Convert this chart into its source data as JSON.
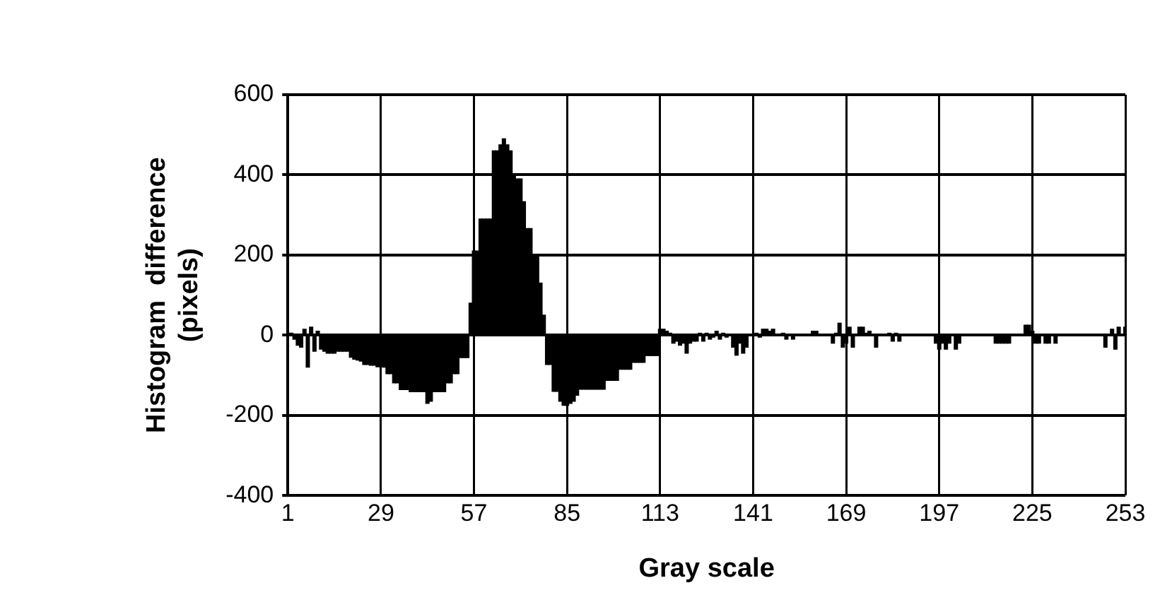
{
  "chart_data": {
    "type": "bar",
    "xlabel": "Gray scale",
    "ylabel": "Histogram  difference\n(pixels)",
    "categories": [
      "1",
      null,
      null,
      null,
      null,
      null,
      null,
      null,
      null,
      null,
      null,
      null,
      null,
      null,
      null,
      null,
      null,
      null,
      null,
      null,
      null,
      null,
      null,
      null,
      null,
      null,
      null,
      null,
      "29",
      null,
      null,
      null,
      null,
      null,
      null,
      null,
      null,
      null,
      null,
      null,
      null,
      null,
      null,
      null,
      null,
      null,
      null,
      null,
      null,
      null,
      null,
      null,
      null,
      null,
      null,
      null,
      "57",
      null,
      null,
      null,
      null,
      null,
      null,
      null,
      null,
      null,
      null,
      null,
      null,
      null,
      null,
      null,
      null,
      null,
      null,
      null,
      null,
      null,
      null,
      null,
      null,
      null,
      null,
      null,
      "85",
      null,
      null,
      null,
      null,
      null,
      null,
      null,
      null,
      null,
      null,
      null,
      null,
      null,
      null,
      null,
      null,
      null,
      null,
      null,
      null,
      null,
      null,
      null,
      null,
      null,
      null,
      null,
      "113",
      null,
      null,
      null,
      null,
      null,
      null,
      null,
      null,
      null,
      null,
      null,
      null,
      null,
      null,
      null,
      null,
      null,
      null,
      null,
      null,
      null,
      null,
      null,
      null,
      null,
      null,
      null,
      "141",
      null,
      null,
      null,
      null,
      null,
      null,
      null,
      null,
      null,
      null,
      null,
      null,
      null,
      null,
      null,
      null,
      null,
      null,
      null,
      null,
      null,
      null,
      null,
      null,
      null,
      null,
      null,
      "169",
      null,
      null,
      null,
      null,
      null,
      null,
      null,
      null,
      null,
      null,
      null,
      null,
      null,
      null,
      null,
      null,
      null,
      null,
      null,
      null,
      null,
      null,
      null,
      null,
      null,
      null,
      null,
      "197",
      null,
      null,
      null,
      null,
      null,
      null,
      null,
      null,
      null,
      null,
      null,
      null,
      null,
      null,
      null,
      null,
      null,
      null,
      null,
      null,
      null,
      null,
      null,
      null,
      null,
      null,
      null,
      "225",
      null,
      null,
      null,
      null,
      null,
      null,
      null,
      null,
      null,
      null,
      null,
      null,
      null,
      null,
      null,
      null,
      null,
      null,
      null,
      null,
      null,
      null,
      null,
      null,
      null,
      null,
      null,
      "253"
    ],
    "values": [
      null,
      5,
      -10,
      -25,
      -30,
      15,
      -80,
      20,
      -40,
      10,
      -35,
      -40,
      -45,
      -45,
      -45,
      -40,
      -40,
      -40,
      -40,
      -55,
      -60,
      -62,
      -65,
      -73,
      -73,
      -75,
      -75,
      -79,
      -79,
      -80,
      -96,
      -96,
      -119,
      -119,
      -136,
      -136,
      -136,
      -141,
      -141,
      -141,
      -141,
      -141,
      -170,
      -165,
      -141,
      -141,
      -141,
      -141,
      -119,
      -119,
      -96,
      -96,
      -56,
      -56,
      -56,
      80,
      210,
      210,
      290,
      290,
      290,
      290,
      460,
      460,
      475,
      490,
      475,
      460,
      400,
      390,
      390,
      333,
      266,
      266,
      200,
      200,
      130,
      50,
      -73,
      -73,
      -140,
      -140,
      -165,
      -175,
      -175,
      -170,
      -165,
      -150,
      -135,
      -135,
      -135,
      -135,
      -135,
      -135,
      -135,
      -135,
      -113,
      -113,
      -113,
      -113,
      -85,
      -85,
      -85,
      -85,
      -68,
      -68,
      -68,
      -68,
      -51,
      -51,
      -51,
      -51,
      15,
      15,
      10,
      5,
      -20,
      -15,
      -25,
      -20,
      -45,
      -20,
      -15,
      -15,
      5,
      -15,
      5,
      -10,
      -5,
      10,
      -10,
      5,
      -5,
      0,
      -30,
      -50,
      -20,
      -45,
      -30,
      0,
      0,
      5,
      -5,
      15,
      15,
      10,
      15,
      0,
      0,
      5,
      -10,
      0,
      -10,
      0,
      0,
      0,
      0,
      0,
      10,
      10,
      0,
      0,
      0,
      0,
      -20,
      5,
      30,
      -30,
      -20,
      20,
      -30,
      0,
      20,
      20,
      5,
      10,
      0,
      -30,
      0,
      0,
      0,
      5,
      -15,
      5,
      -15,
      0,
      0,
      0,
      0,
      0,
      0,
      0,
      0,
      0,
      0,
      -20,
      -35,
      -20,
      -35,
      -20,
      0,
      -35,
      -20,
      0,
      0,
      0,
      0,
      0,
      0,
      0,
      0,
      0,
      0,
      -20,
      -20,
      -20,
      -20,
      -20,
      0,
      0,
      0,
      0,
      25,
      25,
      10,
      -20,
      -20,
      0,
      -20,
      -20,
      0,
      -20,
      0,
      0,
      0,
      0,
      0,
      0,
      0,
      0,
      0,
      0,
      0,
      0,
      0,
      0,
      -30,
      0,
      15,
      -35,
      20,
      0,
      20
    ],
    "color": "#000000",
    "ylim": [
      -400,
      600
    ],
    "yticks": [
      -400,
      -200,
      0,
      200,
      400,
      600
    ],
    "grid": true
  }
}
